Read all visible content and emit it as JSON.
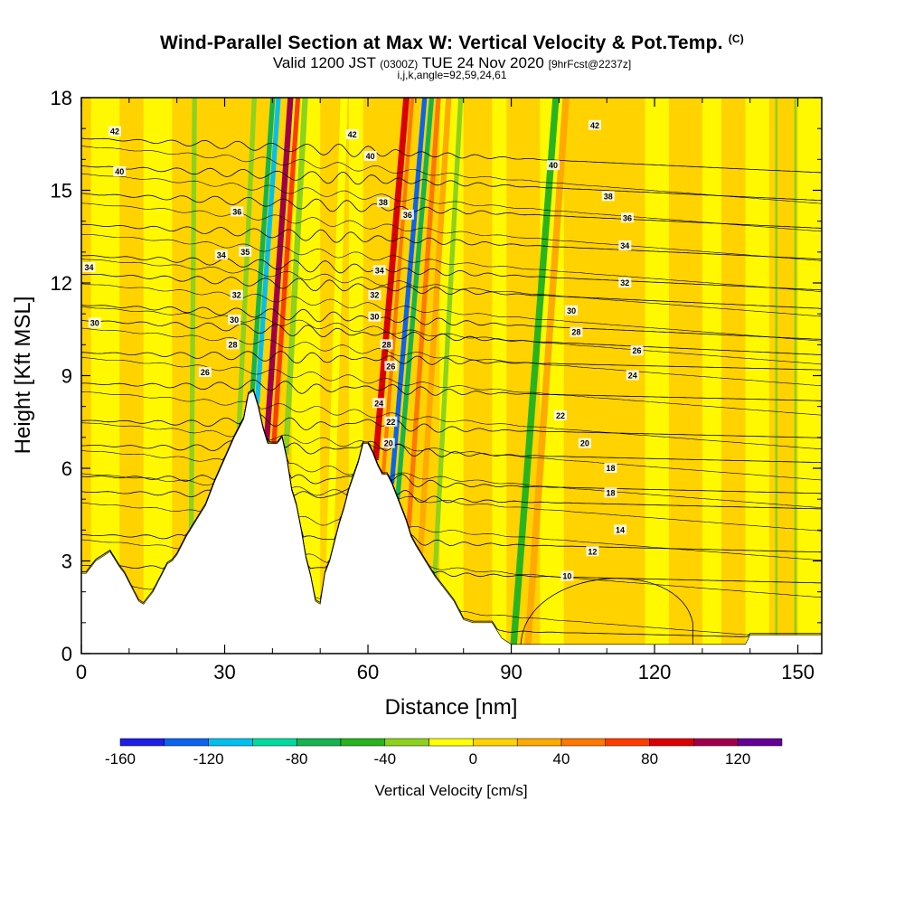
{
  "title": "Wind-Parallel Section at Max W: Vertical Velocity & Pot.Temp.",
  "title_tag": "(C)",
  "subtitle_main": "Valid 1200 JST",
  "subtitle_utc": "(0300Z)",
  "subtitle_date": "TUE 24 Nov 2020",
  "subtitle_fcst": "[9hrFcst@2237z]",
  "subsubtitle": "i,j,k,angle=92,59,24,61",
  "chart_data": {
    "type": "heatmap",
    "description_fields": "filled contours of vertical velocity with potential temperature contour lines over terrain",
    "xlabel": "Distance [nm]",
    "ylabel": "Height [Kft MSL]",
    "xlim": [
      0,
      155
    ],
    "ylim": [
      0,
      18
    ],
    "x_ticks": [
      0,
      30,
      60,
      90,
      120,
      150
    ],
    "y_ticks": [
      0,
      3,
      6,
      9,
      12,
      15,
      18
    ],
    "colorbar": {
      "label": "Vertical Velocity [cm/s]",
      "tick_labels": [
        "-160",
        "-120",
        "-80",
        "-40",
        "0",
        "40",
        "80",
        "120"
      ],
      "tick_values": [
        -160,
        -120,
        -80,
        -40,
        0,
        40,
        80,
        120
      ],
      "range": [
        -160,
        140
      ],
      "colors": [
        "#1e1ee6",
        "#0a64f0",
        "#00c0f0",
        "#00dca0",
        "#14b450",
        "#28b41e",
        "#8cd21e",
        "#ffff00",
        "#ffd200",
        "#ffaa00",
        "#ff7800",
        "#ff3c00",
        "#dc0000",
        "#a0004b",
        "#640096"
      ]
    },
    "terrain_profile": {
      "x": [
        0,
        1,
        3,
        6,
        8,
        9,
        10,
        11,
        12,
        13,
        14,
        15,
        16,
        17,
        18,
        19,
        20,
        22,
        24,
        26,
        28,
        30,
        32,
        34,
        35,
        36,
        37,
        38,
        39,
        40,
        41,
        42,
        43,
        44,
        45,
        46,
        47,
        48,
        49,
        50,
        51,
        52,
        53,
        54,
        55,
        56,
        58,
        59,
        60,
        61,
        62,
        63,
        64,
        65,
        66,
        67,
        68,
        69,
        70,
        72,
        74,
        76,
        78,
        80,
        82,
        84,
        86,
        88,
        90,
        91,
        92,
        100,
        110,
        120,
        130,
        139,
        140,
        150,
        155
      ],
      "height": [
        2.6,
        2.6,
        3.0,
        3.3,
        2.8,
        2.6,
        2.3,
        2.0,
        1.7,
        1.6,
        1.8,
        2.0,
        2.3,
        2.6,
        2.9,
        3.0,
        3.2,
        3.8,
        4.3,
        4.8,
        5.6,
        6.3,
        7.0,
        7.6,
        8.4,
        8.5,
        8.0,
        7.3,
        6.8,
        6.8,
        6.8,
        7.0,
        6.3,
        5.3,
        4.8,
        4.0,
        3.1,
        2.5,
        1.7,
        1.6,
        2.6,
        3.0,
        3.6,
        4.2,
        4.7,
        5.3,
        6.2,
        6.8,
        6.8,
        6.5,
        6.1,
        5.8,
        5.8,
        5.5,
        5.1,
        4.7,
        4.3,
        3.8,
        3.5,
        3.0,
        2.5,
        2.1,
        1.7,
        1.1,
        1.0,
        1.0,
        1.0,
        0.5,
        0.3,
        0.3,
        0.3,
        0.3,
        0.3,
        0.3,
        0.3,
        0.3,
        0.6,
        0.6,
        0.6
      ]
    },
    "theta_contours": {
      "levels": [
        10,
        12,
        14,
        16,
        18,
        20,
        22,
        24,
        26,
        28,
        30,
        32,
        34,
        36,
        38,
        40,
        42
      ],
      "base_height": [
        0.9,
        2.7,
        3.7,
        5.1,
        5.6,
        6.6,
        7.4,
        8.6,
        9.6,
        10.5,
        11.0,
        12.0,
        12.6,
        13.6,
        14.6,
        15.5,
        16.4
      ]
    },
    "contour_labels": [
      {
        "text": "42",
        "x": 7,
        "y": 16.9
      },
      {
        "text": "40",
        "x": 8,
        "y": 15.6
      },
      {
        "text": "34",
        "x": 1.6,
        "y": 12.5
      },
      {
        "text": "30",
        "x": 2.8,
        "y": 10.7
      },
      {
        "text": "34",
        "x": 29.3,
        "y": 12.9
      },
      {
        "text": "36",
        "x": 32.6,
        "y": 14.3
      },
      {
        "text": "35",
        "x": 34.3,
        "y": 13.0
      },
      {
        "text": "32",
        "x": 32.5,
        "y": 11.6
      },
      {
        "text": "30",
        "x": 32.0,
        "y": 10.8
      },
      {
        "text": "28",
        "x": 31.7,
        "y": 10.0
      },
      {
        "text": "26",
        "x": 25.9,
        "y": 9.1
      },
      {
        "text": "42",
        "x": 56.7,
        "y": 16.8
      },
      {
        "text": "40",
        "x": 60.5,
        "y": 16.1
      },
      {
        "text": "38",
        "x": 63.2,
        "y": 14.6
      },
      {
        "text": "36",
        "x": 68.3,
        "y": 14.2
      },
      {
        "text": "34",
        "x": 62.4,
        "y": 12.4
      },
      {
        "text": "32",
        "x": 61.4,
        "y": 11.6
      },
      {
        "text": "30",
        "x": 61.4,
        "y": 10.9
      },
      {
        "text": "28",
        "x": 63.9,
        "y": 10.0
      },
      {
        "text": "26",
        "x": 64.8,
        "y": 9.3
      },
      {
        "text": "24",
        "x": 62.3,
        "y": 8.1
      },
      {
        "text": "22",
        "x": 64.8,
        "y": 7.5
      },
      {
        "text": "20",
        "x": 64.3,
        "y": 6.8
      },
      {
        "text": "42",
        "x": 107.5,
        "y": 17.1
      },
      {
        "text": "40",
        "x": 98.8,
        "y": 15.8
      },
      {
        "text": "38",
        "x": 110.3,
        "y": 14.8
      },
      {
        "text": "36",
        "x": 114.3,
        "y": 14.1
      },
      {
        "text": "34",
        "x": 113.8,
        "y": 13.2
      },
      {
        "text": "32",
        "x": 113.8,
        "y": 12.0
      },
      {
        "text": "30",
        "x": 102.6,
        "y": 11.1
      },
      {
        "text": "28",
        "x": 103.6,
        "y": 10.4
      },
      {
        "text": "26",
        "x": 116.3,
        "y": 9.8
      },
      {
        "text": "24",
        "x": 115.4,
        "y": 9.0
      },
      {
        "text": "22",
        "x": 100.3,
        "y": 7.7
      },
      {
        "text": "20",
        "x": 105.4,
        "y": 6.8
      },
      {
        "text": "18",
        "x": 110.8,
        "y": 6.0
      },
      {
        "text": "18",
        "x": 110.8,
        "y": 5.2
      },
      {
        "text": "14",
        "x": 112.8,
        "y": 4.0
      },
      {
        "text": "12",
        "x": 107.0,
        "y": 3.3
      },
      {
        "text": "10",
        "x": 101.7,
        "y": 2.5
      }
    ],
    "updraft_bands": [
      {
        "x": 38.8,
        "value": 100,
        "tilt": 0.45,
        "width": 1.2
      },
      {
        "x": 40.3,
        "value": 60,
        "tilt": 0.45,
        "width": 1.0
      },
      {
        "x": 36.8,
        "value": -120,
        "tilt": 0.45,
        "width": 1.0
      },
      {
        "x": 35.8,
        "value": -70,
        "tilt": 0.45,
        "width": 1.0
      },
      {
        "x": 42.8,
        "value": -40,
        "tilt": 0.35,
        "width": 1.2
      },
      {
        "x": 33.0,
        "value": -30,
        "tilt": 0.3,
        "width": 1.0
      },
      {
        "x": 23.0,
        "value": -40,
        "tilt": 0.05,
        "width": 1.0
      },
      {
        "x": 61.6,
        "value": 90,
        "tilt": 0.55,
        "width": 1.3
      },
      {
        "x": 63.2,
        "value": 50,
        "tilt": 0.5,
        "width": 0.8
      },
      {
        "x": 65.0,
        "value": -130,
        "tilt": 0.55,
        "width": 1.0
      },
      {
        "x": 66.2,
        "value": -80,
        "tilt": 0.55,
        "width": 1.0
      },
      {
        "x": 68.5,
        "value": 45,
        "tilt": 0.45,
        "width": 1.0
      },
      {
        "x": 71.0,
        "value": 20,
        "tilt": 0.4,
        "width": 1.2
      },
      {
        "x": 74.0,
        "value": -40,
        "tilt": 0.35,
        "width": 1.0
      },
      {
        "x": 90.5,
        "value": -50,
        "tilt": 0.5,
        "width": 1.4
      },
      {
        "x": 93.5,
        "value": 20,
        "tilt": 0.45,
        "width": 1.4
      },
      {
        "x": 52.0,
        "value": -20,
        "tilt": 0.2,
        "width": 1.5
      },
      {
        "x": 145.5,
        "value": -40,
        "tilt": 0.0,
        "width": 0.5
      },
      {
        "x": 149.5,
        "value": -40,
        "tilt": 0.0,
        "width": 0.5
      }
    ]
  }
}
